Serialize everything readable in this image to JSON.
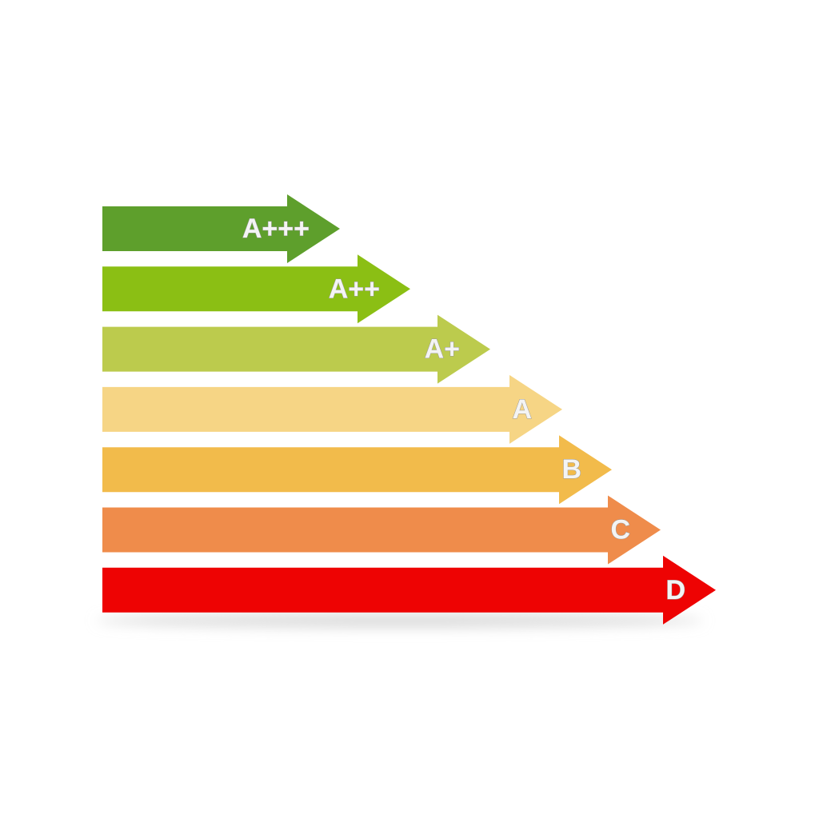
{
  "arrows": [
    {
      "label": "A+++",
      "color": "#5e9f2c"
    },
    {
      "label": "A++",
      "color": "#8bbf14"
    },
    {
      "label": "A+",
      "color": "#bccb4d"
    },
    {
      "label": "A",
      "color": "#f6d585"
    },
    {
      "label": "B",
      "color": "#f2bb4b"
    },
    {
      "label": "C",
      "color": "#ef8c4b"
    },
    {
      "label": "D",
      "color": "#ee0303"
    }
  ]
}
